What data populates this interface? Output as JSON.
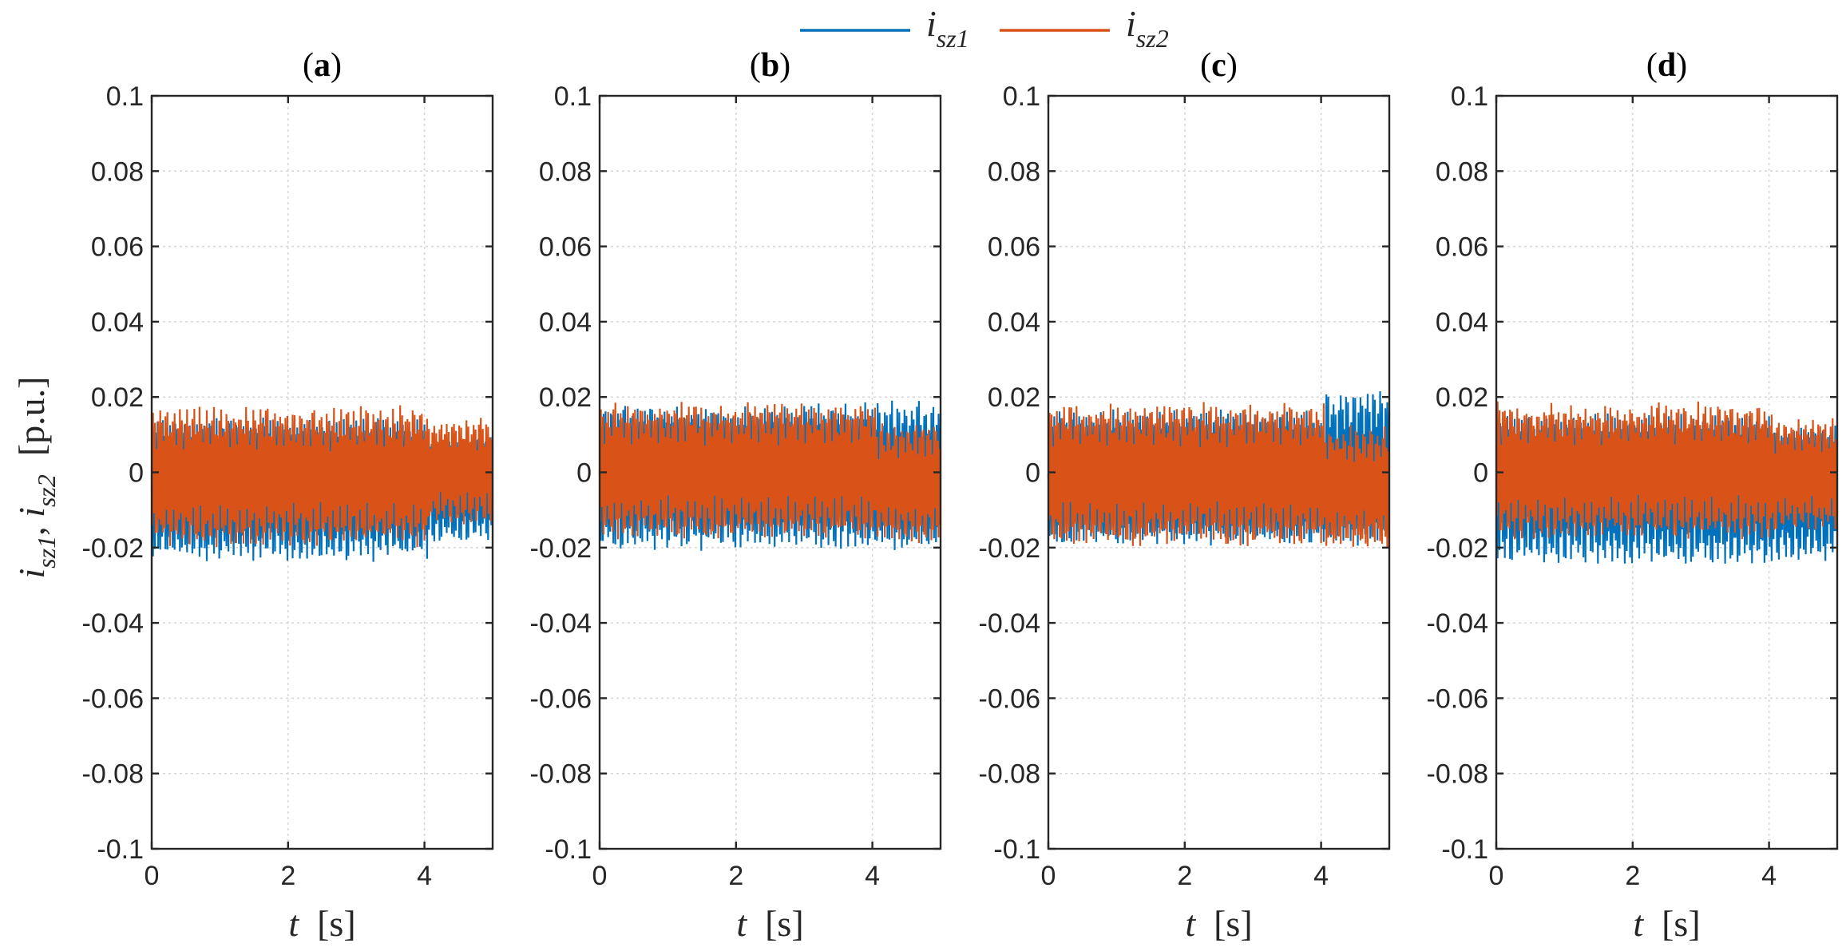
{
  "chart_data": {
    "type": "line",
    "ylabel_parts": [
      "i",
      "sz1",
      ", ",
      "i",
      "sz2",
      "  [p.u.]"
    ],
    "xlabel_parts": [
      "t",
      "  [s]"
    ],
    "legend": {
      "placement": "top-center",
      "entries": [
        {
          "base": "i",
          "sub": "sz1",
          "color": "#0072BD"
        },
        {
          "base": "i",
          "sub": "sz2",
          "color": "#D95319"
        }
      ]
    },
    "xlim": [
      0,
      5
    ],
    "ylim": [
      -0.1,
      0.1
    ],
    "xticks": [
      0,
      2,
      4
    ],
    "xtick_labels": [
      "0",
      "2",
      "4"
    ],
    "yticks": [
      0.1,
      0.08,
      0.06,
      0.04,
      0.02,
      0,
      -0.02,
      -0.04,
      -0.06,
      -0.08,
      -0.1
    ],
    "ytick_labels": [
      "0.1",
      "0.08",
      "0.06",
      "0.04",
      "0.02",
      "0",
      "-0.02",
      "-0.04",
      "-0.06",
      "-0.08",
      "-0.1"
    ],
    "grid": true,
    "panels": [
      {
        "title_letter": "a",
        "switch_time": 4.05,
        "series": [
          {
            "name": "isz1",
            "color": "#0072BD",
            "before": [
              -0.024,
              0.015
            ],
            "after": [
              -0.019,
              0.01
            ]
          },
          {
            "name": "isz2",
            "color": "#D95319",
            "before": [
              -0.02,
              0.018
            ],
            "after": [
              -0.014,
              0.015
            ]
          }
        ]
      },
      {
        "title_letter": "b",
        "switch_time": 4.05,
        "series": [
          {
            "name": "isz1",
            "color": "#0072BD",
            "before": [
              -0.021,
              0.019
            ],
            "after": [
              -0.022,
              0.02
            ]
          },
          {
            "name": "isz2",
            "color": "#D95319",
            "before": [
              -0.018,
              0.019
            ],
            "after": [
              -0.019,
              0.014
            ]
          }
        ]
      },
      {
        "title_letter": "c",
        "switch_time": 4.05,
        "series": [
          {
            "name": "isz1",
            "color": "#0072BD",
            "before": [
              -0.02,
              0.017
            ],
            "after": [
              -0.02,
              0.022
            ]
          },
          {
            "name": "isz2",
            "color": "#D95319",
            "before": [
              -0.02,
              0.019
            ],
            "after": [
              -0.021,
              0.013
            ]
          }
        ]
      },
      {
        "title_letter": "d",
        "switch_time": 4.05,
        "series": [
          {
            "name": "isz1",
            "color": "#0072BD",
            "before": [
              -0.025,
              0.016
            ],
            "after": [
              -0.024,
              0.013
            ]
          },
          {
            "name": "isz2",
            "color": "#D95319",
            "before": [
              -0.018,
              0.019
            ],
            "after": [
              -0.016,
              0.015
            ]
          }
        ]
      }
    ]
  }
}
